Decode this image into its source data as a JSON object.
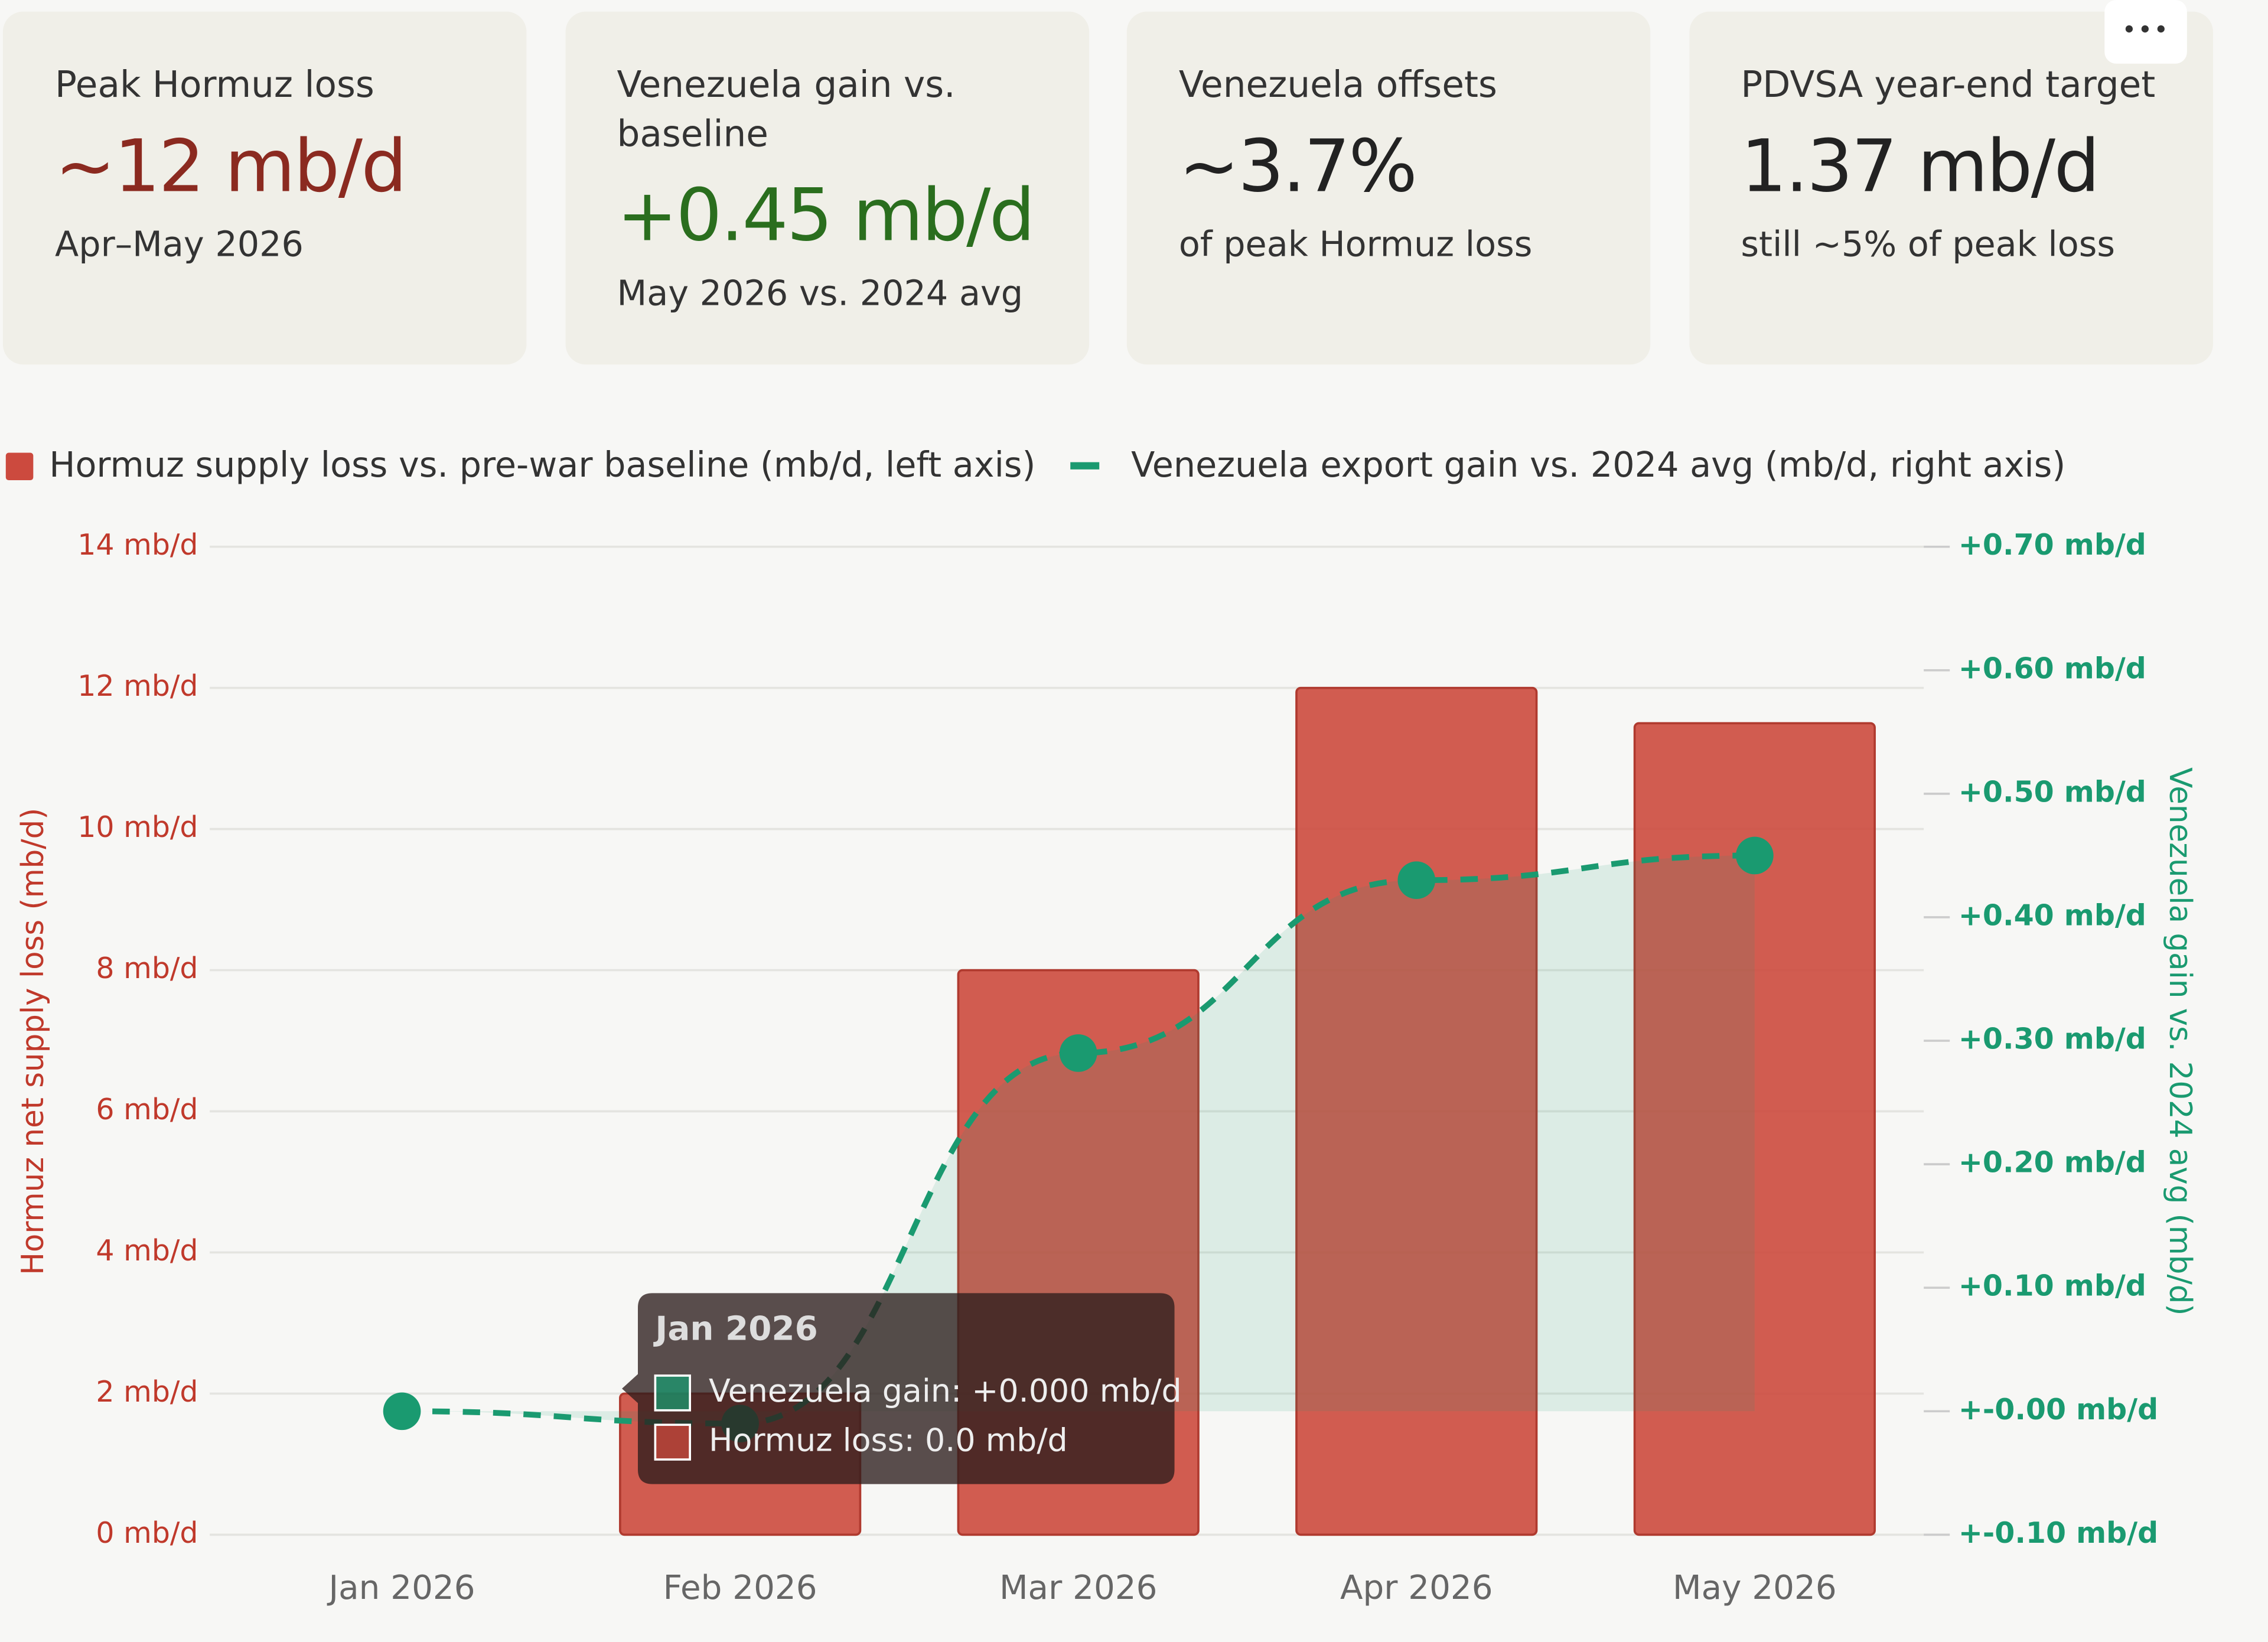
{
  "cards": [
    {
      "label": "Peak Hormuz loss",
      "value": "~12 mb/d",
      "sub": "Apr–May 2026",
      "color": "#8b2a20"
    },
    {
      "label": "Venezuela gain vs. baseline",
      "value": "+0.45 mb/d",
      "sub": "May 2026 vs. 2024 avg",
      "color": "#2a6e1e"
    },
    {
      "label": "Venezuela offsets",
      "value": "~3.7%",
      "sub": "of peak Hormuz loss",
      "color": "#222222"
    },
    {
      "label": "PDVSA year-end target",
      "value": "1.37 mb/d",
      "sub": "still ~5% of peak loss",
      "color": "#222222"
    }
  ],
  "chart_data": {
    "type": "bar-line",
    "ylabel": "Hormuz net supply loss (mb/d)",
    "y2label": "Venezuela gain vs. 2024 avg (mb/d)",
    "categories": [
      "Jan 2026",
      "Feb 2026",
      "Mar 2026",
      "Apr 2026",
      "May 2026"
    ],
    "series": [
      {
        "name": "Hormuz supply loss vs. pre-war baseline (mb/d, left axis)",
        "type": "bar",
        "color": "#cc4a3e",
        "values": [
          0,
          2,
          8,
          12,
          11.5
        ]
      },
      {
        "name": "Venezuela export gain vs. 2024 avg (mb/d, right axis)",
        "type": "line",
        "axis": "y2",
        "color": "#1a9a70",
        "values": [
          0,
          -0.01,
          0.29,
          0.43,
          0.45
        ]
      }
    ],
    "ylim": [
      0,
      14
    ],
    "yticks": [
      {
        "value": 0,
        "label": "0 mb/d"
      },
      {
        "value": 2,
        "label": "2 mb/d"
      },
      {
        "value": 4,
        "label": "4 mb/d"
      },
      {
        "value": 6,
        "label": "6 mb/d"
      },
      {
        "value": 8,
        "label": "8 mb/d"
      },
      {
        "value": 10,
        "label": "10 mb/d"
      },
      {
        "value": 12,
        "label": "12 mb/d"
      },
      {
        "value": 14,
        "label": "14 mb/d"
      }
    ],
    "y2lim": [
      -0.1,
      0.7
    ],
    "y2ticks": [
      {
        "value": -0.1,
        "label": "+-0.10 mb/d"
      },
      {
        "value": 0,
        "label": "+-0.00 mb/d"
      },
      {
        "value": 0.1,
        "label": "+0.10 mb/d"
      },
      {
        "value": 0.2,
        "label": "+0.20 mb/d"
      },
      {
        "value": 0.3,
        "label": "+0.30 mb/d"
      },
      {
        "value": 0.4,
        "label": "+0.40 mb/d"
      },
      {
        "value": 0.5,
        "label": "+0.50 mb/d"
      },
      {
        "value": 0.6,
        "label": "+0.60 mb/d"
      },
      {
        "value": 0.7,
        "label": "+0.70 mb/d"
      }
    ],
    "grid": true,
    "legend": "top-left",
    "tooltip": {
      "title": "Jan 2026",
      "items": [
        "Venezuela gain: +0.000 mb/d",
        "Hormuz loss: 0.0 mb/d"
      ]
    }
  }
}
